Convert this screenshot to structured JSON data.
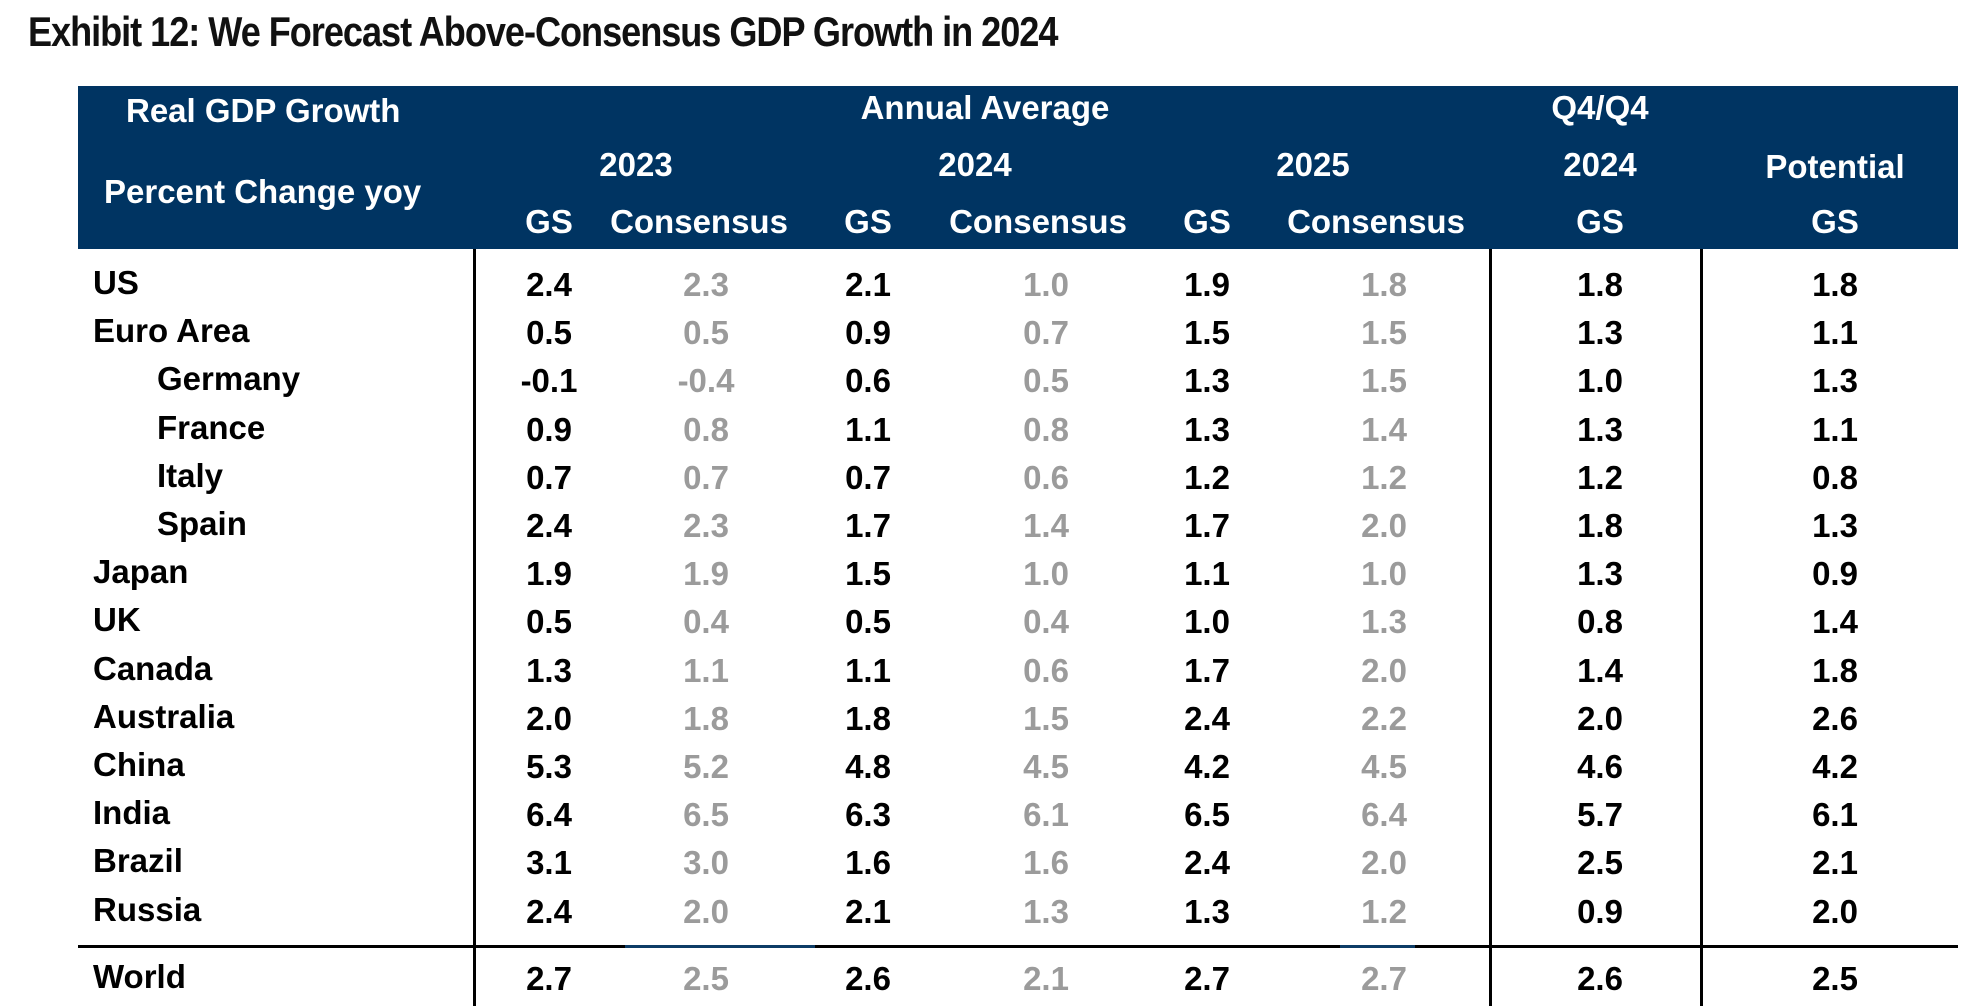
{
  "title": "Exhibit 12: We Forecast Above-Consensus GDP Growth in 2024",
  "header": {
    "row_label_1": "Real GDP Growth",
    "row_label_2": "Percent Change yoy",
    "annual_average": "Annual Average",
    "q4q4": "Q4/Q4",
    "year_2023": "2023",
    "year_2024": "2024",
    "year_2025": "2025",
    "q4_year": "2024",
    "potential": "Potential",
    "col_gs": "GS",
    "col_consensus": "Consensus"
  },
  "colors": {
    "header_bg": "#003462",
    "gs_text": "#000000",
    "consensus_text": "#9b9b9b"
  },
  "chart_data": {
    "type": "table",
    "columns": [
      "2023 GS",
      "2023 Consensus",
      "2024 GS",
      "2024 Consensus",
      "2025 GS",
      "2025 Consensus",
      "Q4/Q4 2024 GS",
      "Potential GS"
    ],
    "rows": [
      {
        "name": "US",
        "values": [
          "2.4",
          "2.3",
          "2.1",
          "1.0",
          "1.9",
          "1.8",
          "1.8",
          "1.8"
        ]
      },
      {
        "name": "Euro Area",
        "values": [
          "0.5",
          "0.5",
          "0.9",
          "0.7",
          "1.5",
          "1.5",
          "1.3",
          "1.1"
        ]
      },
      {
        "name": "Germany",
        "values": [
          "-0.1",
          "-0.4",
          "0.6",
          "0.5",
          "1.3",
          "1.5",
          "1.0",
          "1.3"
        ]
      },
      {
        "name": "France",
        "values": [
          "0.9",
          "0.8",
          "1.1",
          "0.8",
          "1.3",
          "1.4",
          "1.3",
          "1.1"
        ]
      },
      {
        "name": "Italy",
        "values": [
          "0.7",
          "0.7",
          "0.7",
          "0.6",
          "1.2",
          "1.2",
          "1.2",
          "0.8"
        ]
      },
      {
        "name": "Spain",
        "values": [
          "2.4",
          "2.3",
          "1.7",
          "1.4",
          "1.7",
          "2.0",
          "1.8",
          "1.3"
        ]
      },
      {
        "name": "Japan",
        "values": [
          "1.9",
          "1.9",
          "1.5",
          "1.0",
          "1.1",
          "1.0",
          "1.3",
          "0.9"
        ]
      },
      {
        "name": "UK",
        "values": [
          "0.5",
          "0.4",
          "0.5",
          "0.4",
          "1.0",
          "1.3",
          "0.8",
          "1.4"
        ]
      },
      {
        "name": "Canada",
        "values": [
          "1.3",
          "1.1",
          "1.1",
          "0.6",
          "1.7",
          "2.0",
          "1.4",
          "1.8"
        ]
      },
      {
        "name": "Australia",
        "values": [
          "2.0",
          "1.8",
          "1.8",
          "1.5",
          "2.4",
          "2.2",
          "2.0",
          "2.6"
        ]
      },
      {
        "name": "China",
        "values": [
          "5.3",
          "5.2",
          "4.8",
          "4.5",
          "4.2",
          "4.5",
          "4.6",
          "4.2"
        ]
      },
      {
        "name": "India",
        "values": [
          "6.4",
          "6.5",
          "6.3",
          "6.1",
          "6.5",
          "6.4",
          "5.7",
          "6.1"
        ]
      },
      {
        "name": "Brazil",
        "values": [
          "3.1",
          "3.0",
          "1.6",
          "1.6",
          "2.4",
          "2.0",
          "2.5",
          "2.1"
        ]
      },
      {
        "name": "Russia",
        "values": [
          "2.4",
          "2.0",
          "2.1",
          "1.3",
          "1.3",
          "1.2",
          "0.9",
          "2.0"
        ]
      },
      {
        "name": "World",
        "values": [
          "2.7",
          "2.5",
          "2.6",
          "2.1",
          "2.7",
          "2.7",
          "2.6",
          "2.5"
        ]
      }
    ],
    "indented_rows": [
      "Germany",
      "France",
      "Italy",
      "Spain"
    ]
  }
}
